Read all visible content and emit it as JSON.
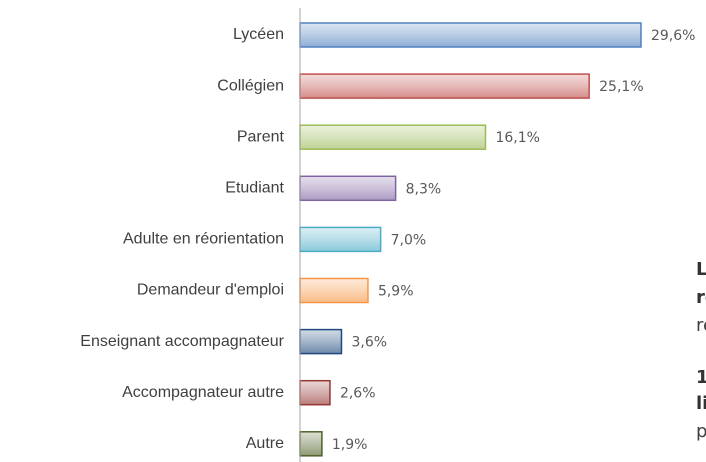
{
  "chart_data": {
    "type": "bar",
    "orientation": "horizontal",
    "categories": [
      "Lycéen",
      "Collégien",
      "Parent",
      "Etudiant",
      "Adulte en réorientation",
      "Demandeur d'emploi",
      "Enseignant accompagnateur",
      "Accompagnateur autre",
      "Autre"
    ],
    "values": [
      29.6,
      25.1,
      16.1,
      8.3,
      7.0,
      5.9,
      3.6,
      2.6,
      1.9
    ],
    "value_labels": [
      "29,6%",
      "25,1%",
      "16,1%",
      "8,3%",
      "7,0%",
      "5,9%",
      "3,6%",
      "2,6%",
      "1,9%"
    ],
    "colors": [
      "#4f81bd",
      "#c0504d",
      "#9bbb59",
      "#8064a2",
      "#4bacc6",
      "#f79646",
      "#1f497d",
      "#943634",
      "#4f6228"
    ],
    "annotations": [
      {
        "text": "L",
        "bold": true
      },
      {
        "text": "re",
        "bold": true
      },
      {
        "text": "re",
        "bold": false
      },
      {
        "text": "1",
        "bold": true
      },
      {
        "text": "li",
        "bold": true
      },
      {
        "text": "p",
        "bold": false
      }
    ]
  }
}
